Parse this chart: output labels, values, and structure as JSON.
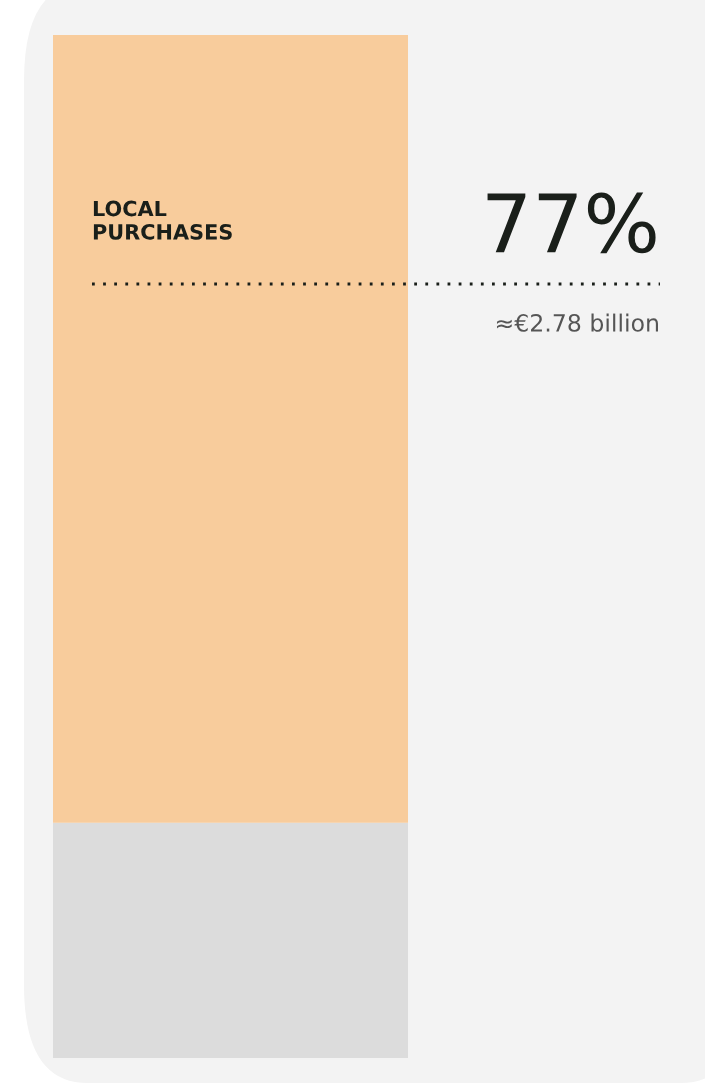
{
  "chart_data": {
    "type": "bar",
    "stacked": true,
    "categories": [
      null
    ],
    "series": [
      {
        "color": "#dcdcdc",
        "values": [
          23
        ]
      },
      {
        "name": "LOCAL PURCHASES",
        "color": "#f8cc9c",
        "values": [
          77
        ],
        "value_labels": [
          "77%"
        ]
      }
    ],
    "ylim": [
      0,
      100
    ],
    "tick_labels": false,
    "legend": false,
    "annotations": [
      "≈€2.78 billion"
    ]
  }
}
